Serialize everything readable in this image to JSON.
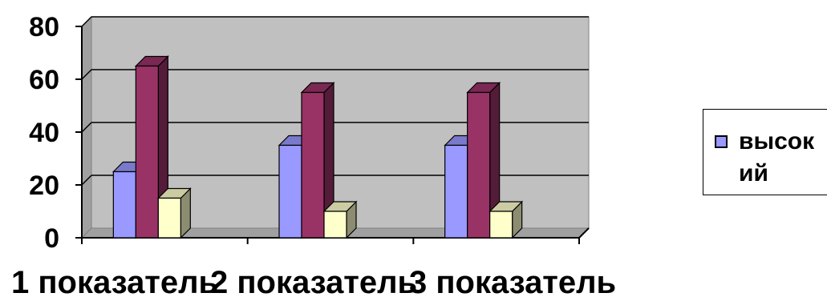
{
  "chart_data": {
    "type": "bar",
    "categories": [
      "1 показатель",
      "2 показатель",
      "3 показатель"
    ],
    "series": [
      {
        "name": "высокий",
        "values": [
          25,
          35,
          35
        ],
        "color": "#9999ff"
      },
      {
        "values": [
          65,
          55,
          55
        ],
        "color": "#993366"
      },
      {
        "values": [
          15,
          10,
          10
        ],
        "color": "#ffffcc"
      }
    ],
    "ylim": [
      0,
      80
    ],
    "yticks": [
      "0",
      "20",
      "40",
      "60",
      "80"
    ],
    "grid": true,
    "plot_background": "#c0c0c0",
    "legend_position": "right"
  },
  "legend": {
    "label": "высокий"
  }
}
